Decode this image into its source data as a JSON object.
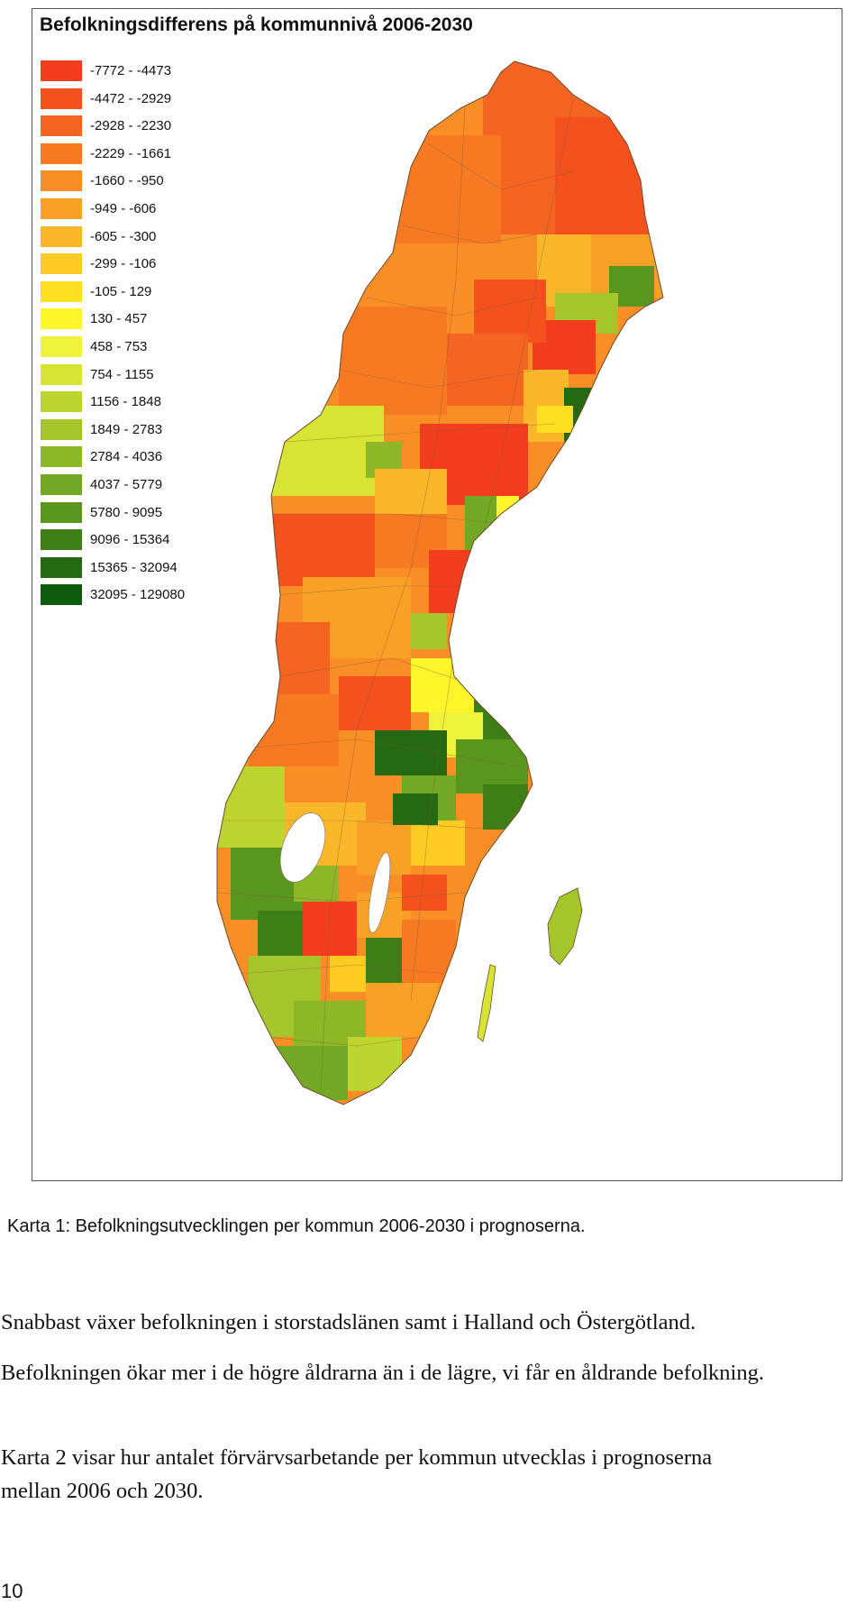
{
  "map": {
    "title": "Befolkningsdifferens på kommunnivå 2006-2030",
    "legend": [
      {
        "label": "-7772 - -4473",
        "color": "#f23d1e"
      },
      {
        "label": "-4472 - -2929",
        "color": "#f4511f"
      },
      {
        "label": "-2928 - -2230",
        "color": "#f66421"
      },
      {
        "label": "-2229 - -1661",
        "color": "#f77a23"
      },
      {
        "label": "-1660 - -950",
        "color": "#f88e25"
      },
      {
        "label": "-949 - -606",
        "color": "#f9a127"
      },
      {
        "label": "-605 - -300",
        "color": "#fbb72a"
      },
      {
        "label": "-299 - -106",
        "color": "#fdcc24"
      },
      {
        "label": "-105 - 129",
        "color": "#ffe020"
      },
      {
        "label": "130 - 457",
        "color": "#fff52a"
      },
      {
        "label": "458 - 753",
        "color": "#eef23a"
      },
      {
        "label": "754 - 1155",
        "color": "#d7e433"
      },
      {
        "label": "1156 - 1848",
        "color": "#bdd52e"
      },
      {
        "label": "1849 - 2783",
        "color": "#a5c62b"
      },
      {
        "label": "2784 - 4036",
        "color": "#8cb827"
      },
      {
        "label": "4037 - 5779",
        "color": "#72a823"
      },
      {
        "label": "5780 - 9095",
        "color": "#5a951e"
      },
      {
        "label": "9096 - 15364",
        "color": "#3d7e17"
      },
      {
        "label": "15365 - 32094",
        "color": "#256a12"
      },
      {
        "label": "32095 - 129080",
        "color": "#0f5a0c"
      }
    ]
  },
  "caption": "Karta 1: Befolkningsutvecklingen per kommun 2006-2030 i prognoserna.",
  "paragraphs": [
    "Snabbast växer befolkningen i storstadslänen samt i Halland och Östergötland.",
    "Befolkningen ökar mer i de högre åldrarna än i de lägre, vi får en åldrande befolkning.",
    "Karta 2 visar hur antalet förvärvsarbetande per kommun utvecklas i prognoserna mellan 2006 och 2030."
  ],
  "page_number": "10"
}
